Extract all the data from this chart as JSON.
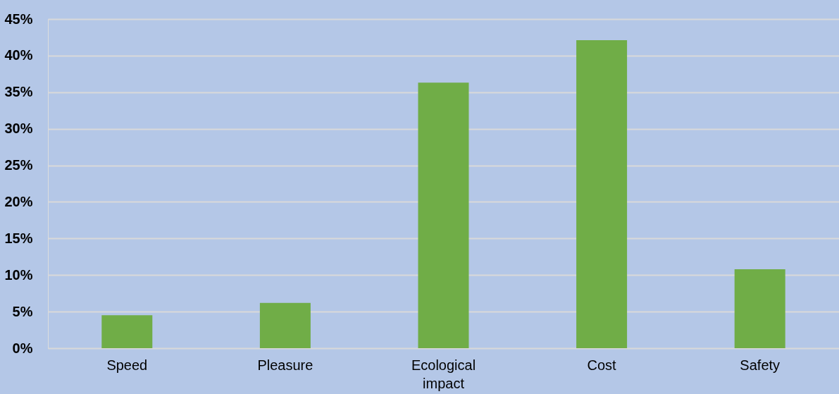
{
  "chart_data": {
    "type": "bar",
    "categories": [
      "Speed",
      "Pleasure",
      "Ecological impact",
      "Cost",
      "Safety"
    ],
    "values": [
      4.5,
      6.2,
      36.3,
      42.1,
      10.8
    ],
    "color": "#70ad47",
    "ylim": [
      0,
      45
    ],
    "yticks": [
      {
        "value": 0,
        "label": "0%"
      },
      {
        "value": 5,
        "label": "5%"
      },
      {
        "value": 10,
        "label": "10%"
      },
      {
        "value": 15,
        "label": "15%"
      },
      {
        "value": 20,
        "label": "20%"
      },
      {
        "value": 25,
        "label": "25%"
      },
      {
        "value": 30,
        "label": "30%"
      },
      {
        "value": 35,
        "label": "35%"
      },
      {
        "value": 40,
        "label": "40%"
      },
      {
        "value": 45,
        "label": "45%"
      }
    ],
    "grid": "y"
  }
}
